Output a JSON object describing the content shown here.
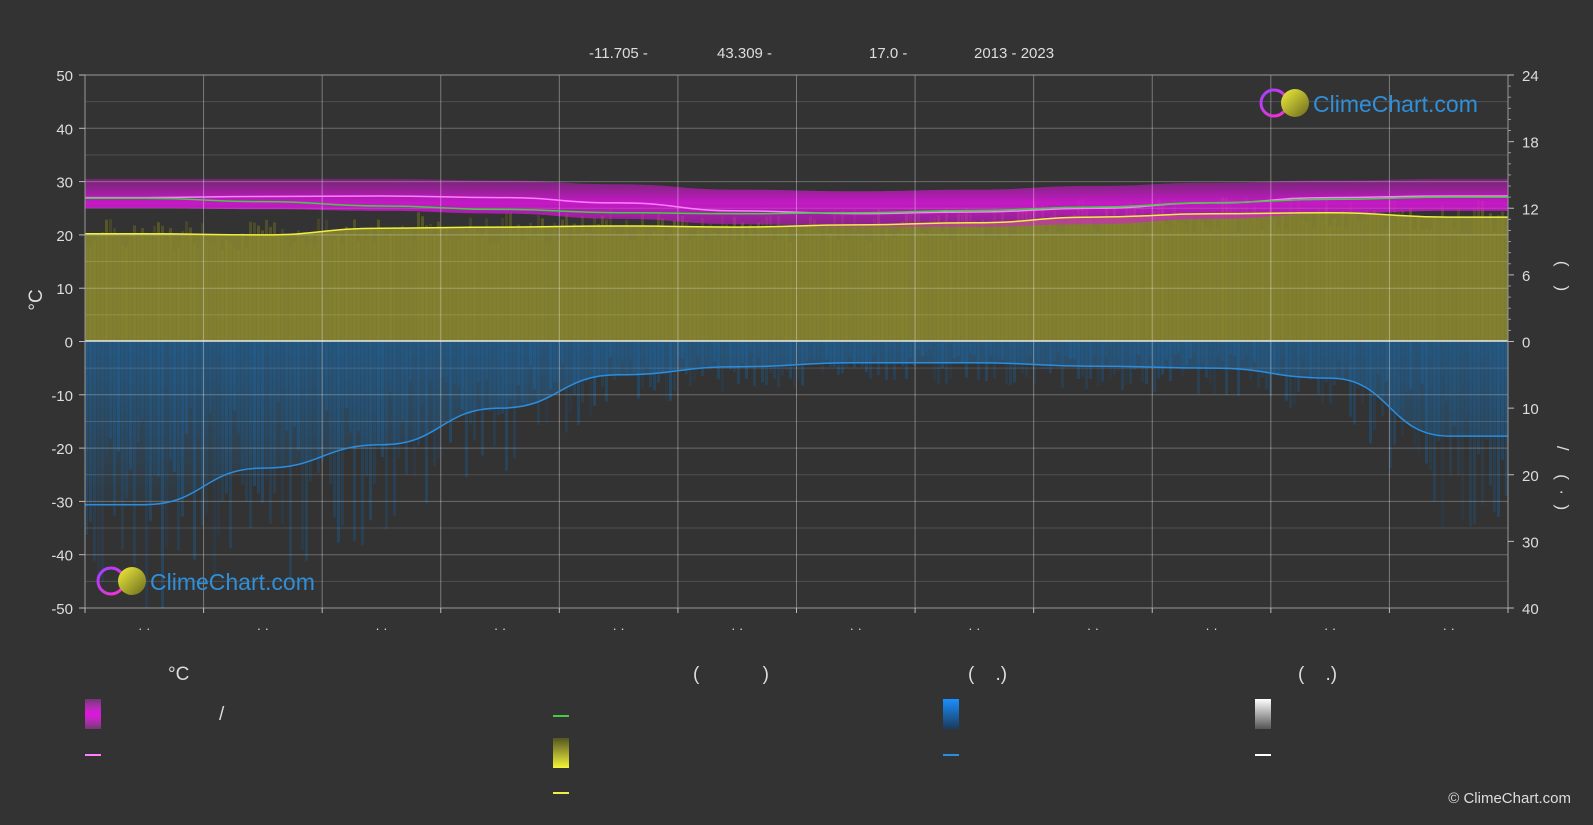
{
  "header": {
    "lon": "-11.705 -",
    "lat": "43.309 -",
    "elev": "17.0 -",
    "years": "2013 - 2023"
  },
  "brand": {
    "logo_text": "ClimeChart.com",
    "copyright": "© ClimeChart.com"
  },
  "legend": {
    "col1_head": "°C",
    "col1_row1_text": "/",
    "col2_head": "(            )",
    "col3_head": "(    .)",
    "col4_head": "(    .)"
  },
  "colors": {
    "background": "#333333",
    "temp_band": "#e014e0",
    "temp_line": "#ff80ff",
    "daylight_line": "#44cc44",
    "sunshine_fill": "#8c8a30",
    "sunshine_line": "#f0f040",
    "precip_fill": "#1f5f96",
    "precip_line": "#2a8ee0",
    "snow_line": "#ffffff"
  },
  "chart_data": {
    "type": "line",
    "title": "",
    "xlabel": "",
    "ylabel": "°C",
    "ylim": [
      -50,
      50
    ],
    "yticks": [
      50,
      40,
      30,
      20,
      10,
      0,
      -10,
      -20,
      -30,
      -40,
      -50
    ],
    "right_axis_upper": {
      "ticks": [
        24,
        18,
        12,
        6,
        0
      ],
      "range": [
        0,
        24
      ],
      "label": "(    )"
    },
    "right_axis_lower": {
      "ticks": [
        0,
        10,
        20,
        30,
        40
      ],
      "range": [
        0,
        40
      ],
      "label": "/     (  ·  )"
    },
    "x_tick_labels": [
      "· ·",
      "· ·",
      "· ·",
      "· ·",
      "· ·",
      "· ·",
      "· ·",
      "· ·",
      "· ·",
      "· ·",
      "· ·",
      "· ·"
    ],
    "grid": true,
    "months": [
      1,
      2,
      3,
      4,
      5,
      6,
      7,
      8,
      9,
      10,
      11,
      12
    ],
    "series": [
      {
        "key": "temp_max_band_top",
        "values": [
          30.5,
          30.5,
          30.5,
          30.2,
          29.5,
          28.5,
          28.2,
          28.5,
          29.2,
          29.8,
          30.2,
          30.5
        ]
      },
      {
        "key": "temp_min_band_bottom",
        "values": [
          25.0,
          24.8,
          24.5,
          24.0,
          23.0,
          22.0,
          21.5,
          21.5,
          22.0,
          23.0,
          24.0,
          24.5
        ]
      },
      {
        "key": "avg_temperature",
        "values": [
          27.0,
          27.2,
          27.3,
          27.0,
          26.0,
          24.5,
          24.0,
          24.3,
          25.0,
          26.0,
          27.0,
          27.3
        ]
      },
      {
        "key": "daylight_hours",
        "values": [
          12.9,
          12.6,
          12.2,
          11.9,
          11.6,
          11.5,
          11.6,
          11.8,
          12.1,
          12.5,
          12.8,
          13.0
        ]
      },
      {
        "key": "sunshine_hours",
        "values": [
          9.7,
          9.6,
          10.2,
          10.3,
          10.4,
          10.3,
          10.5,
          10.7,
          11.2,
          11.5,
          11.6,
          11.2
        ]
      },
      {
        "key": "precipitation_mm",
        "values": [
          24.5,
          19.0,
          15.5,
          10.0,
          5.0,
          3.8,
          3.2,
          3.2,
          3.7,
          4.0,
          5.5,
          14.2
        ]
      }
    ]
  }
}
